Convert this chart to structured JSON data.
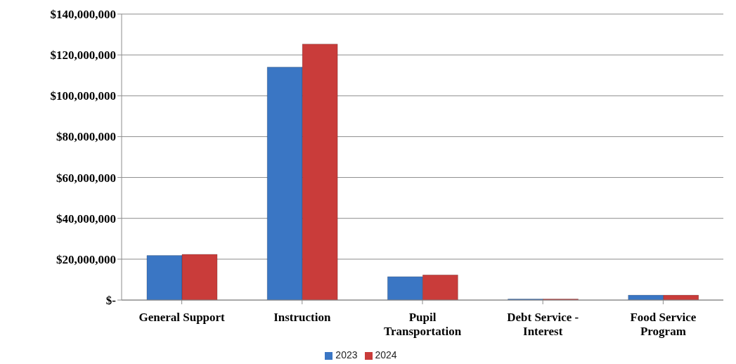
{
  "chart_data": {
    "type": "bar",
    "categories": [
      "General Support",
      "Instruction",
      "Pupil Transportation",
      "Debt Service - Interest",
      "Food Service Program"
    ],
    "series": [
      {
        "name": "2023",
        "color": "#3a76c4",
        "values": [
          21800000,
          114000000,
          11400000,
          500000,
          2400000
        ]
      },
      {
        "name": "2024",
        "color": "#c93c3a",
        "values": [
          22400000,
          125300000,
          12300000,
          500000,
          2400000
        ]
      }
    ],
    "ylim": [
      0,
      140000000
    ],
    "yticks": [
      {
        "value": 0,
        "label": "$-"
      },
      {
        "value": 20000000,
        "label": "$20,000,000"
      },
      {
        "value": 40000000,
        "label": "$40,000,000"
      },
      {
        "value": 60000000,
        "label": "$60,000,000"
      },
      {
        "value": 80000000,
        "label": "$80,000,000"
      },
      {
        "value": 100000000,
        "label": "$100,000,000"
      },
      {
        "value": 120000000,
        "label": "$120,000,000"
      },
      {
        "value": 140000000,
        "label": "$140,000,000"
      }
    ],
    "grid": "y",
    "legend": "bottom"
  }
}
